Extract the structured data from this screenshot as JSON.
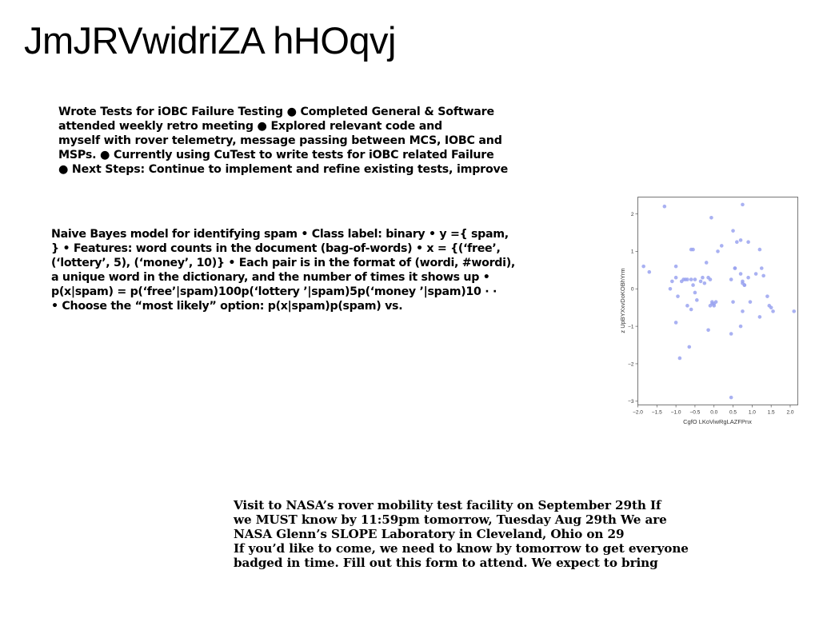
{
  "title": "JmJRVwidriZA hHOqvj",
  "block1": {
    "lines": [
      "Wrote Tests for iOBC Failure Testing ● Completed General & Software",
      "attended weekly retro meeting ● Explored relevant code and",
      "myself with rover telemetry, message passing between MCS, IOBC and",
      "MSPs. ● Currently using CuTest to write tests for iOBC related Failure",
      "● Next Steps: Continue to implement and refine existing tests, improve"
    ]
  },
  "block2": {
    "lines": [
      "Naive Bayes model for identifying spam • Class label: binary • y ={ spam,",
      "} • Features: word counts in the document (bag-of-words) • x = {(‘free’,",
      "(‘lottery’, 5), (‘money’, 10)} • Each pair is in the format of (wordi, #wordi),",
      "a unique word in the dictionary, and the number of times it shows up •",
      "p(x|spam) = p(‘free’|spam)100p(‘lottery ’|spam)5p(‘money ’|spam)10 · ·",
      "• Choose the “most likely” option: p(x|spam)p(spam) vs."
    ]
  },
  "block3": {
    "lines": [
      "Visit to NASA’s rover mobility test facility on September 29th If",
      "we MUST know by 11:59pm tomorrow, Tuesday Aug 29th We are",
      "NASA Glenn’s SLOPE Laboratory in Cleveland, Ohio on 29",
      "If you’d like to come, we need to know by tomorrow to get everyone",
      "badged in time. Fill out this form to attend. We expect to bring"
    ]
  },
  "chart_data": {
    "type": "scatter",
    "title": "",
    "xlabel": "CgfO LKoViwRgLAZFPnx",
    "ylabel": "z UpBYXxvDoKOBhYrm",
    "xlim": [
      -2.0,
      2.2
    ],
    "ylim": [
      -3.1,
      2.45
    ],
    "xticks": [
      "−2.0",
      "−1.5",
      "−1.0",
      "−0.5",
      "0.0",
      "0.5",
      "1.0",
      "1.5",
      "2.0"
    ],
    "yticks": [
      "−3",
      "−2",
      "−1",
      "0",
      "1",
      "2"
    ],
    "grid": false,
    "point_color": "#9aa3f0",
    "series": [
      {
        "x": [
          -1.3,
          0.75,
          -0.07,
          -1.85,
          -1.7,
          -1.0,
          -1.1,
          -1.15,
          -1.0,
          -0.95,
          -0.8,
          -0.75,
          -0.7,
          -0.6,
          -0.55,
          -0.5,
          -0.45,
          -0.55,
          -0.6,
          -0.7,
          -0.85,
          -1.0,
          -0.6,
          -0.5,
          -0.3,
          -0.25,
          -0.35,
          -0.2,
          -0.15,
          -0.1,
          -0.05,
          0.0,
          0.1,
          0.2,
          -0.1,
          -0.05,
          0.0,
          0.05,
          0.45,
          0.5,
          0.55,
          0.6,
          0.7,
          0.75,
          0.8,
          0.9,
          0.7,
          0.75,
          0.8,
          0.9,
          0.95,
          1.1,
          1.2,
          1.25,
          1.3,
          1.4,
          1.45,
          1.5,
          1.55,
          1.2,
          0.45,
          0.5,
          0.7,
          0.75,
          -0.15,
          0.45,
          -0.65,
          -0.9,
          0.55,
          2.1
        ],
        "y": [
          2.2,
          2.25,
          1.9,
          0.6,
          0.45,
          0.6,
          0.2,
          0.0,
          0.3,
          -0.2,
          0.25,
          0.25,
          -0.45,
          0.25,
          0.1,
          -0.1,
          -0.3,
          1.05,
          1.05,
          0.25,
          0.2,
          -0.9,
          -0.55,
          0.25,
          0.3,
          0.15,
          0.2,
          0.7,
          0.3,
          0.25,
          -0.4,
          -0.45,
          1.0,
          1.15,
          -0.45,
          -0.35,
          -0.4,
          -0.35,
          0.25,
          1.55,
          0.55,
          1.25,
          1.3,
          0.15,
          0.1,
          1.25,
          0.4,
          0.2,
          0.1,
          0.3,
          -0.35,
          0.4,
          1.05,
          0.55,
          0.35,
          -0.2,
          -0.45,
          -0.5,
          -0.6,
          -0.75,
          -1.2,
          -0.35,
          -1.0,
          -0.6,
          -1.1,
          -2.9,
          -1.55,
          -1.85,
          0.55,
          -0.6
        ]
      }
    ]
  }
}
